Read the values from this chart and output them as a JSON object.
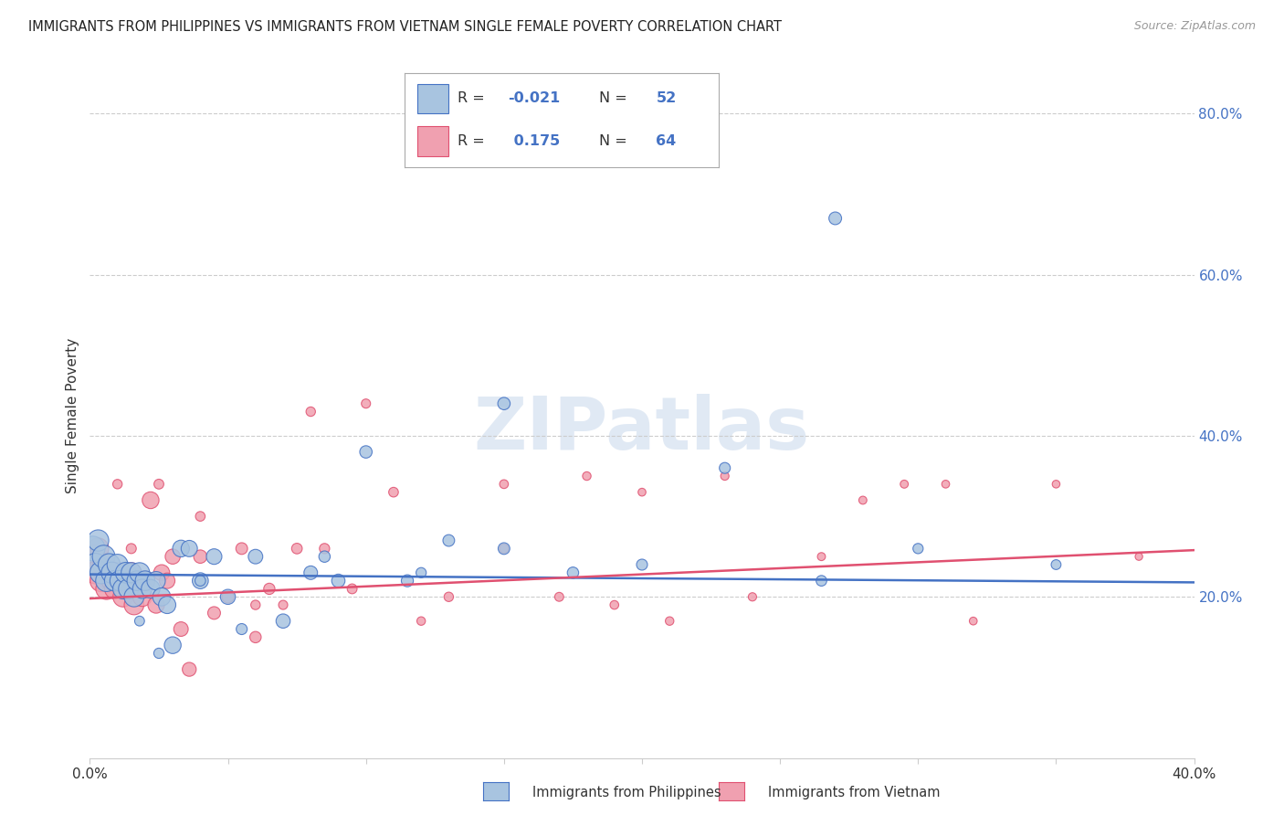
{
  "title": "IMMIGRANTS FROM PHILIPPINES VS IMMIGRANTS FROM VIETNAM SINGLE FEMALE POVERTY CORRELATION CHART",
  "source": "Source: ZipAtlas.com",
  "ylabel": "Single Female Poverty",
  "xlim": [
    0.0,
    0.4
  ],
  "ylim": [
    0.0,
    0.85
  ],
  "yticks_right": [
    0.2,
    0.4,
    0.6,
    0.8
  ],
  "ytick_labels_right": [
    "20.0%",
    "40.0%",
    "60.0%",
    "80.0%"
  ],
  "xticks": [
    0.0,
    0.05,
    0.1,
    0.15,
    0.2,
    0.25,
    0.3,
    0.35,
    0.4
  ],
  "color_philippines": "#a8c4e0",
  "color_vietnam": "#f0a0b0",
  "line_color_philippines": "#4472c4",
  "line_color_vietnam": "#e05070",
  "watermark": "ZIPatlas",
  "background_color": "#ffffff",
  "phil_x": [
    0.001,
    0.002,
    0.003,
    0.004,
    0.005,
    0.006,
    0.007,
    0.008,
    0.009,
    0.01,
    0.011,
    0.012,
    0.013,
    0.014,
    0.015,
    0.016,
    0.017,
    0.018,
    0.019,
    0.02,
    0.022,
    0.024,
    0.026,
    0.028,
    0.03,
    0.033,
    0.036,
    0.04,
    0.045,
    0.05,
    0.06,
    0.07,
    0.08,
    0.09,
    0.1,
    0.115,
    0.13,
    0.15,
    0.175,
    0.2,
    0.23,
    0.265,
    0.3,
    0.27,
    0.15,
    0.085,
    0.055,
    0.04,
    0.025,
    0.018,
    0.12,
    0.35
  ],
  "phil_y": [
    0.26,
    0.24,
    0.27,
    0.23,
    0.25,
    0.22,
    0.24,
    0.23,
    0.22,
    0.24,
    0.22,
    0.21,
    0.23,
    0.21,
    0.23,
    0.2,
    0.22,
    0.23,
    0.21,
    0.22,
    0.21,
    0.22,
    0.2,
    0.19,
    0.14,
    0.26,
    0.26,
    0.22,
    0.25,
    0.2,
    0.25,
    0.17,
    0.23,
    0.22,
    0.38,
    0.22,
    0.27,
    0.44,
    0.23,
    0.24,
    0.36,
    0.22,
    0.26,
    0.67,
    0.26,
    0.25,
    0.16,
    0.22,
    0.13,
    0.17,
    0.23,
    0.24
  ],
  "phil_sizes": [
    380,
    320,
    280,
    300,
    320,
    290,
    300,
    280,
    260,
    270,
    265,
    255,
    265,
    250,
    255,
    245,
    240,
    250,
    230,
    240,
    215,
    210,
    200,
    185,
    175,
    175,
    165,
    160,
    150,
    140,
    130,
    125,
    115,
    110,
    95,
    90,
    85,
    95,
    80,
    75,
    75,
    70,
    65,
    100,
    85,
    80,
    75,
    70,
    65,
    60,
    65,
    60
  ],
  "viet_x": [
    0.001,
    0.002,
    0.003,
    0.004,
    0.005,
    0.006,
    0.007,
    0.008,
    0.009,
    0.01,
    0.011,
    0.012,
    0.013,
    0.014,
    0.015,
    0.016,
    0.017,
    0.018,
    0.019,
    0.02,
    0.022,
    0.024,
    0.026,
    0.028,
    0.03,
    0.033,
    0.036,
    0.04,
    0.045,
    0.05,
    0.055,
    0.06,
    0.065,
    0.075,
    0.085,
    0.095,
    0.11,
    0.13,
    0.15,
    0.17,
    0.19,
    0.21,
    0.24,
    0.265,
    0.295,
    0.32,
    0.35,
    0.38,
    0.2,
    0.12,
    0.07,
    0.04,
    0.025,
    0.015,
    0.01,
    0.005,
    0.18,
    0.23,
    0.28,
    0.31,
    0.08,
    0.1,
    0.15,
    0.06
  ],
  "viet_y": [
    0.25,
    0.23,
    0.26,
    0.22,
    0.24,
    0.21,
    0.23,
    0.22,
    0.21,
    0.23,
    0.22,
    0.2,
    0.22,
    0.21,
    0.23,
    0.19,
    0.21,
    0.22,
    0.2,
    0.22,
    0.32,
    0.19,
    0.23,
    0.22,
    0.25,
    0.16,
    0.11,
    0.25,
    0.18,
    0.2,
    0.26,
    0.15,
    0.21,
    0.26,
    0.26,
    0.21,
    0.33,
    0.2,
    0.26,
    0.2,
    0.19,
    0.17,
    0.2,
    0.25,
    0.34,
    0.17,
    0.34,
    0.25,
    0.33,
    0.17,
    0.19,
    0.3,
    0.34,
    0.26,
    0.34,
    0.24,
    0.35,
    0.35,
    0.32,
    0.34,
    0.43,
    0.44,
    0.34,
    0.19
  ],
  "viet_sizes": [
    360,
    310,
    275,
    295,
    310,
    280,
    290,
    270,
    255,
    265,
    260,
    250,
    260,
    245,
    250,
    240,
    235,
    245,
    225,
    235,
    175,
    170,
    160,
    150,
    140,
    130,
    120,
    110,
    100,
    92,
    85,
    80,
    78,
    70,
    65,
    60,
    58,
    55,
    52,
    50,
    47,
    45,
    43,
    40,
    40,
    38,
    37,
    35,
    38,
    45,
    52,
    58,
    60,
    62,
    55,
    50,
    45,
    43,
    40,
    38,
    55,
    52,
    48,
    55
  ],
  "phil_trend_x": [
    0.0,
    0.4
  ],
  "phil_trend_y": [
    0.228,
    0.218
  ],
  "viet_trend_x": [
    0.0,
    0.4
  ],
  "viet_trend_y": [
    0.198,
    0.258
  ]
}
